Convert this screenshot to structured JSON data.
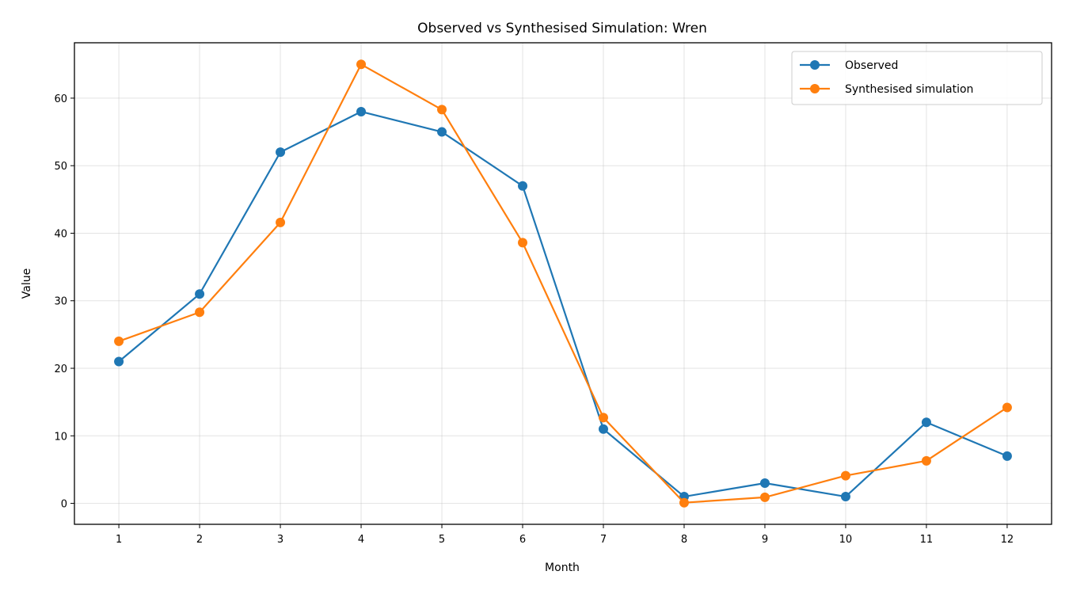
{
  "chart_data": {
    "type": "line",
    "title": "Observed vs Synthesised Simulation: Wren",
    "xlabel": "Month",
    "ylabel": "Value",
    "x": [
      1,
      2,
      3,
      4,
      5,
      6,
      7,
      8,
      9,
      10,
      11,
      12
    ],
    "xlim": [
      0.45,
      12.55
    ],
    "ylim": [
      -3.1,
      68.2
    ],
    "yticks": [
      0,
      10,
      20,
      30,
      40,
      50,
      60
    ],
    "grid": true,
    "legend_position": "top-right",
    "series": [
      {
        "name": "Observed",
        "color": "#1f77b4",
        "values": [
          21,
          31,
          52,
          58,
          55,
          47,
          11,
          1,
          3,
          1,
          12,
          7
        ]
      },
      {
        "name": "Synthesised simulation",
        "color": "#ff7f0e",
        "values": [
          24,
          28.3,
          41.6,
          65,
          58.3,
          38.6,
          12.7,
          0.1,
          0.9,
          4.1,
          6.3,
          14.2
        ]
      }
    ]
  }
}
